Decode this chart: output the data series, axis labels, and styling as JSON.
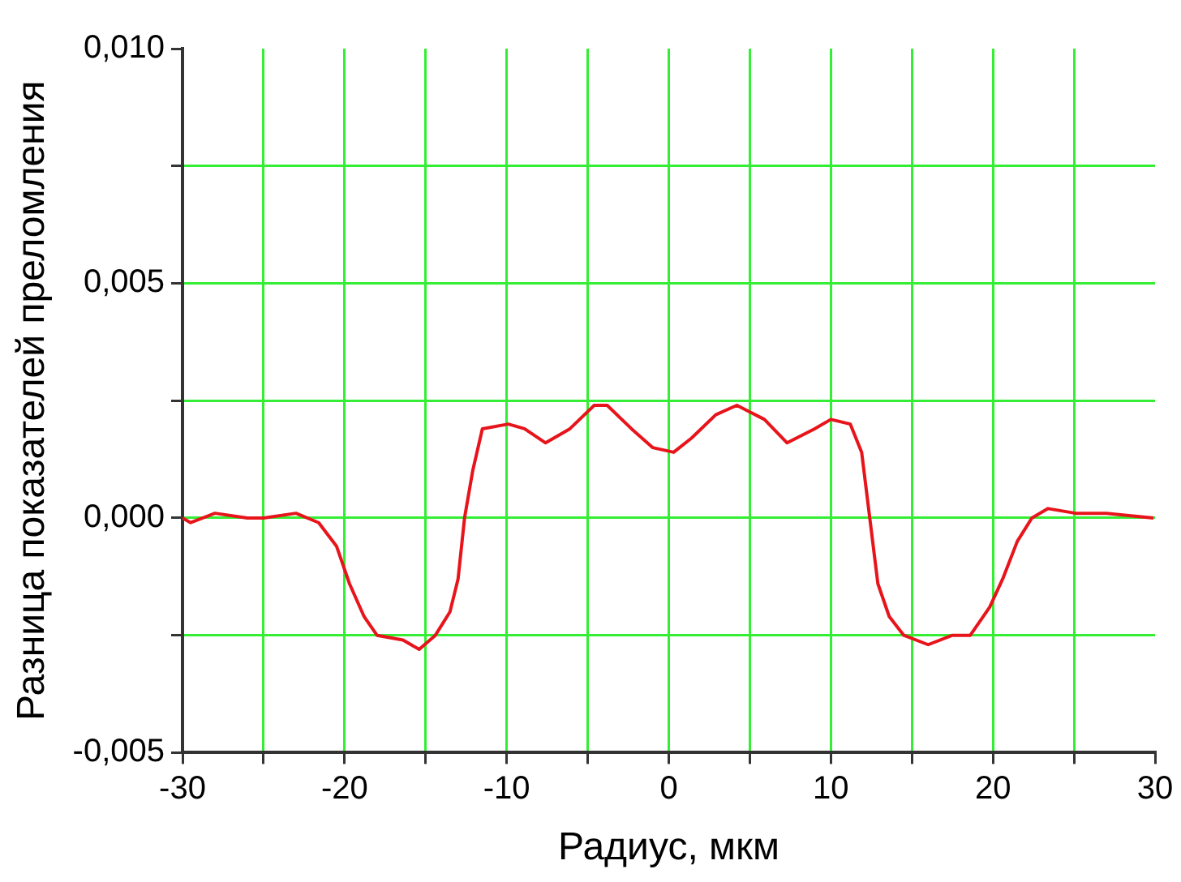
{
  "chart_data": {
    "type": "line",
    "xlabel": "Радиус, мкм",
    "ylabel": "Разница показателей преломления",
    "x": [
      -30,
      -29.5,
      -28,
      -26,
      -25,
      -23,
      -21.6,
      -20.5,
      -19.7,
      -18.8,
      -18.0,
      -16.4,
      -15.4,
      -14.4,
      -13.5,
      -13.0,
      -12.6,
      -12.1,
      -11.5,
      -9.9,
      -8.9,
      -7.6,
      -6.1,
      -4.6,
      -3.8,
      -2.3,
      -1.0,
      0.3,
      1.4,
      2.9,
      4.2,
      5.9,
      7.3,
      9.0,
      10.0,
      11.2,
      11.9,
      12.4,
      12.9,
      13.6,
      14.5,
      16.0,
      17.5,
      18.6,
      19.8,
      20.6,
      21.5,
      22.4,
      23.4,
      25.1,
      27,
      29.9
    ],
    "series": [
      {
        "color": "#e8141b",
        "values": [
          0.0,
          -0.0001,
          0.0001,
          0.0,
          0.0,
          0.0001,
          -0.0001,
          -0.0006,
          -0.0014,
          -0.0021,
          -0.0025,
          -0.0026,
          -0.0028,
          -0.0025,
          -0.002,
          -0.0013,
          0.0,
          0.001,
          0.0019,
          0.002,
          0.0019,
          0.0016,
          0.0019,
          0.0024,
          0.0024,
          0.0019,
          0.0015,
          0.0014,
          0.0017,
          0.0022,
          0.0024,
          0.0021,
          0.0016,
          0.0019,
          0.0021,
          0.002,
          0.0014,
          0.0,
          -0.0014,
          -0.0021,
          -0.0025,
          -0.0027,
          -0.0025,
          -0.0025,
          -0.0019,
          -0.0013,
          -0.0005,
          0.0,
          0.0002,
          0.0001,
          0.0001,
          0.0
        ]
      }
    ],
    "xlim": [
      -30,
      30
    ],
    "ylim": [
      -0.005,
      0.01
    ],
    "xticks": [
      -30,
      {
        "value": -25,
        "label": null
      },
      -20,
      {
        "value": -15,
        "label": null
      },
      -10,
      {
        "value": -5,
        "label": null
      },
      0,
      {
        "value": 5,
        "label": null
      },
      10,
      {
        "value": 15,
        "label": null
      },
      20,
      {
        "value": 25,
        "label": null
      },
      30
    ],
    "yticks": [
      {
        "value": -0.005,
        "label": "-0,005"
      },
      {
        "value": -0.0025,
        "label": null
      },
      {
        "value": 0,
        "label": "0,000"
      },
      {
        "value": 0.0025,
        "label": null
      },
      {
        "value": 0.005,
        "label": "0,005"
      },
      {
        "value": 0.0075,
        "label": null
      },
      {
        "value": 0.01,
        "label": "0,010"
      }
    ],
    "grid": true
  }
}
